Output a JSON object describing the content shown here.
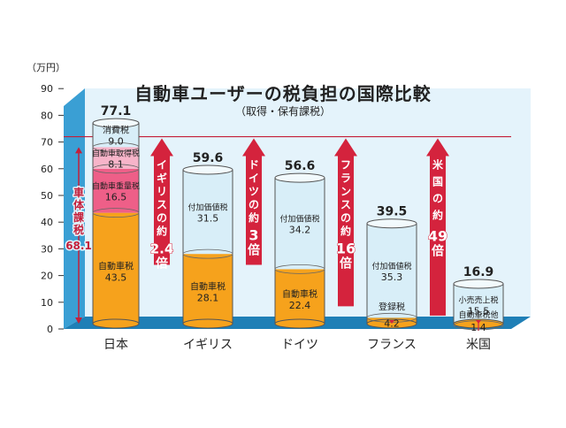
{
  "chart_data": {
    "type": "bar",
    "title": "自動車ユーザーの税負担の国際比較",
    "subtitle": "（取得・保有課税）",
    "unit_label": "（万円）",
    "ylim": [
      0,
      90
    ],
    "yticks": [
      0,
      10,
      20,
      30,
      40,
      50,
      60,
      70,
      80,
      90
    ],
    "reference_line": 72,
    "categories": [
      "日本",
      "イギリス",
      "ドイツ",
      "フランス",
      "米国"
    ],
    "totals": [
      "77.1",
      "59.6",
      "56.6",
      "39.5",
      "16.9"
    ],
    "countries": [
      {
        "name": "日本",
        "total": 77.1,
        "segments": [
          {
            "name": "自動車税",
            "value": 43.5,
            "value_label": "43.5",
            "color": "#f6a21c"
          },
          {
            "name": "自動車重量税",
            "value": 16.5,
            "value_label": "16.5",
            "color": "#ee5f88"
          },
          {
            "name": "自動車取得税",
            "value": 8.1,
            "value_label": "8.1",
            "color": "#f7b4c9"
          },
          {
            "name": "消費税",
            "value": 9.0,
            "value_label": "9.0",
            "color": "#d8eef8"
          }
        ]
      },
      {
        "name": "イギリス",
        "total": 59.6,
        "segments": [
          {
            "name": "自動車税",
            "value": 28.1,
            "value_label": "28.1",
            "color": "#f6a21c"
          },
          {
            "name": "付加価値税",
            "value": 31.5,
            "value_label": "31.5",
            "color": "#d8eef8"
          }
        ]
      },
      {
        "name": "ドイツ",
        "total": 56.6,
        "segments": [
          {
            "name": "自動車税",
            "value": 22.4,
            "value_label": "22.4",
            "color": "#f6a21c"
          },
          {
            "name": "付加価値税",
            "value": 34.2,
            "value_label": "34.2",
            "color": "#d8eef8"
          }
        ]
      },
      {
        "name": "フランス",
        "total": 39.5,
        "segments": [
          {
            "name": "登録税",
            "value": 4.2,
            "value_label": "4.2",
            "color": "#f6a21c"
          },
          {
            "name": "付加価値税",
            "value": 35.3,
            "value_label": "35.3",
            "color": "#d8eef8"
          }
        ]
      },
      {
        "name": "米国",
        "total": 16.9,
        "segments": [
          {
            "name": "自動車税他",
            "value": 1.4,
            "value_label": "1.4",
            "color": "#f6a21c"
          },
          {
            "name": "小売売上税",
            "value": 15.5,
            "value_label": "15.5",
            "color": "#d8eef8"
          }
        ]
      }
    ],
    "vehicle_tax_bracket": {
      "label": "車体課税",
      "value_label": "68.1",
      "value": 68.1
    },
    "ratio_arrows": [
      {
        "country": "イギリス",
        "text": "イギリスの約",
        "multiplier": "2.4",
        "suffix": "倍"
      },
      {
        "country": "ドイツ",
        "text": "ドイツの約",
        "multiplier": "3",
        "suffix": "倍"
      },
      {
        "country": "フランス",
        "text": "フランスの約",
        "multiplier": "16",
        "suffix": "倍"
      },
      {
        "country": "米国",
        "text": "米国の約",
        "multiplier": "49",
        "suffix": "倍"
      }
    ],
    "colors": {
      "chart_bg": "#e4f3fb",
      "chart_side": "#3a9fd4",
      "chart_floor": "#1f7fb6",
      "arrow": "#d4233d",
      "bracket": "#c41e3a",
      "cylinder_body": "#d8eef8",
      "cylinder_top": "#f2fafd"
    }
  }
}
